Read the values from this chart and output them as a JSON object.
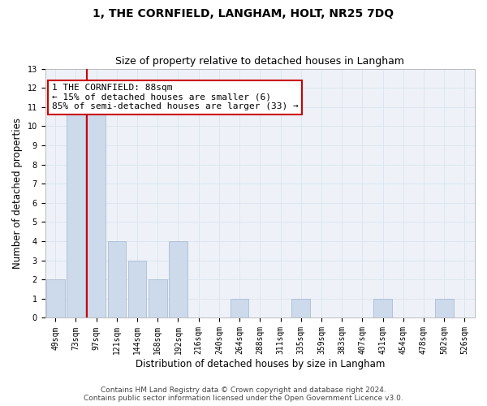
{
  "title": "1, THE CORNFIELD, LANGHAM, HOLT, NR25 7DQ",
  "subtitle": "Size of property relative to detached houses in Langham",
  "xlabel": "Distribution of detached houses by size in Langham",
  "ylabel": "Number of detached properties",
  "bins": [
    "49sqm",
    "73sqm",
    "97sqm",
    "121sqm",
    "144sqm",
    "168sqm",
    "192sqm",
    "216sqm",
    "240sqm",
    "264sqm",
    "288sqm",
    "311sqm",
    "335sqm",
    "359sqm",
    "383sqm",
    "407sqm",
    "431sqm",
    "454sqm",
    "478sqm",
    "502sqm",
    "526sqm"
  ],
  "bar_values": [
    2,
    11,
    11,
    4,
    3,
    2,
    4,
    0,
    0,
    1,
    0,
    0,
    1,
    0,
    0,
    0,
    1,
    0,
    0,
    1,
    0
  ],
  "bar_color": "#ccdaec",
  "bar_edge_color": "#aabdd4",
  "redline_bin_index": 2,
  "redline_color": "#cc0000",
  "annotation_line1": "1 THE CORNFIELD: 88sqm",
  "annotation_line2": "← 15% of detached houses are smaller (6)",
  "annotation_line3": "85% of semi-detached houses are larger (33) →",
  "annotation_box_color": "#ffffff",
  "annotation_box_edge_color": "#cc0000",
  "ylim": [
    0,
    13
  ],
  "yticks": [
    0,
    1,
    2,
    3,
    4,
    5,
    6,
    7,
    8,
    9,
    10,
    11,
    12,
    13
  ],
  "grid_color": "#dce6f0",
  "bg_color": "#eef2f8",
  "footer_line1": "Contains HM Land Registry data © Crown copyright and database right 2024.",
  "footer_line2": "Contains public sector information licensed under the Open Government Licence v3.0.",
  "title_fontsize": 10,
  "subtitle_fontsize": 9,
  "axis_label_fontsize": 8.5,
  "tick_fontsize": 7,
  "annotation_fontsize": 8,
  "footer_fontsize": 6.5
}
